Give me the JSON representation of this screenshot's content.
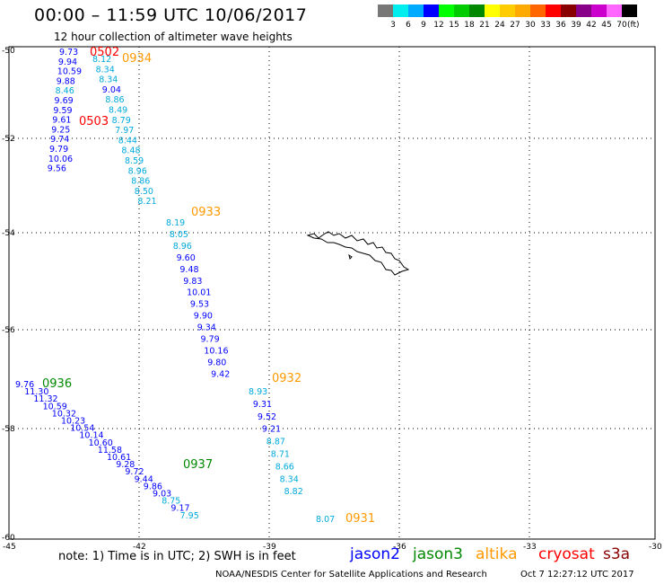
{
  "header": {
    "title": "00:00 – 11:59 UTC 10/06/2017",
    "subtitle": "12 hour collection of altimeter wave heights"
  },
  "color_scale": {
    "labels": [
      "3",
      "6",
      "9",
      "12",
      "15",
      "18",
      "21",
      "24",
      "27",
      "30",
      "33",
      "36",
      "39",
      "42",
      "45",
      "70"
    ],
    "unit": "(ft)",
    "colors": [
      "#777777",
      "#00eeee",
      "#00aaff",
      "#0000ff",
      "#00ff00",
      "#00cc00",
      "#008800",
      "#ffff00",
      "#ffcc00",
      "#ffaa00",
      "#ff6600",
      "#ff0000",
      "#880000",
      "#880088",
      "#cc00cc",
      "#ff66ff",
      "#000000"
    ]
  },
  "map": {
    "lat_labels": [
      "-50",
      "-52",
      "-54",
      "-56",
      "-58",
      "-60"
    ],
    "lon_labels": [
      "-45",
      "-42",
      "-39",
      "-36",
      "-33",
      "-30"
    ],
    "track_colors": {
      "jason2": "#0000ff",
      "jason3": "#008800",
      "altika": "#ff9900",
      "cryosat": "#ff0000",
      "s3a": "#880000",
      "low": "#00aadd"
    }
  },
  "tracks": [
    {
      "name": "track-0502",
      "time": "0502",
      "sat": "cryosat",
      "points": [
        {
          "v": "9.73",
          "c": "jason2"
        },
        {
          "v": "9.94",
          "c": "jason2"
        },
        {
          "v": "10.59",
          "c": "jason2"
        },
        {
          "v": "9.88",
          "c": "jason2"
        },
        {
          "v": "8.46",
          "c": "low"
        },
        {
          "v": "9.69",
          "c": "jason2"
        },
        {
          "v": "9.59",
          "c": "jason2"
        },
        {
          "v": "9.61",
          "c": "jason2"
        },
        {
          "v": "9.25",
          "c": "jason2"
        },
        {
          "v": "9.74",
          "c": "jason2"
        },
        {
          "v": "9.79",
          "c": "jason2"
        },
        {
          "v": "10.06",
          "c": "jason2"
        },
        {
          "v": "9.56",
          "c": "jason2"
        }
      ]
    },
    {
      "name": "track-0503",
      "time": "0503",
      "sat": "cryosat",
      "points": []
    },
    {
      "name": "track-0934",
      "time": "0934",
      "sat": "altika",
      "points": [
        {
          "v": "8.12",
          "c": "low"
        },
        {
          "v": "8.34",
          "c": "low"
        },
        {
          "v": "8.34",
          "c": "low"
        },
        {
          "v": "9.04",
          "c": "jason2"
        },
        {
          "v": "8.86",
          "c": "low"
        },
        {
          "v": "8.49",
          "c": "low"
        },
        {
          "v": "8.79",
          "c": "low"
        },
        {
          "v": "7.97",
          "c": "low"
        },
        {
          "v": "8.44",
          "c": "low"
        },
        {
          "v": "8.48",
          "c": "low"
        },
        {
          "v": "8.59",
          "c": "low"
        },
        {
          "v": "8.96",
          "c": "low"
        },
        {
          "v": "8.86",
          "c": "low"
        },
        {
          "v": "8.50",
          "c": "low"
        },
        {
          "v": "8.21",
          "c": "low"
        }
      ]
    },
    {
      "name": "track-0933",
      "time": "0933",
      "sat": "altika",
      "points": [
        {
          "v": "8.19",
          "c": "low"
        },
        {
          "v": "8.05",
          "c": "low"
        },
        {
          "v": "8.96",
          "c": "low"
        },
        {
          "v": "9.60",
          "c": "jason2"
        },
        {
          "v": "9.48",
          "c": "jason2"
        },
        {
          "v": "9.83",
          "c": "jason2"
        },
        {
          "v": "10.01",
          "c": "jason2"
        },
        {
          "v": "9.53",
          "c": "jason2"
        },
        {
          "v": "9.90",
          "c": "jason2"
        },
        {
          "v": "9.34",
          "c": "jason2"
        },
        {
          "v": "9.79",
          "c": "jason2"
        },
        {
          "v": "10.16",
          "c": "jason2"
        },
        {
          "v": "9.80",
          "c": "jason2"
        },
        {
          "v": "9.42",
          "c": "jason2"
        }
      ]
    },
    {
      "name": "track-0932",
      "time": "0932",
      "sat": "altika",
      "points": [
        {
          "v": "8.93",
          "c": "low"
        },
        {
          "v": "9.31",
          "c": "jason2"
        },
        {
          "v": "9.52",
          "c": "jason2"
        },
        {
          "v": "9.21",
          "c": "jason2"
        },
        {
          "v": "8.87",
          "c": "low"
        },
        {
          "v": "8.71",
          "c": "low"
        },
        {
          "v": "8.66",
          "c": "low"
        },
        {
          "v": "8.34",
          "c": "low"
        },
        {
          "v": "8.82",
          "c": "low"
        },
        {
          "v": "8.07",
          "c": "low"
        }
      ]
    },
    {
      "name": "track-0931",
      "time": "0931",
      "sat": "altika",
      "points": []
    },
    {
      "name": "track-0936",
      "time": "0936",
      "sat": "jason3",
      "points": [
        {
          "v": "9.76",
          "c": "jason2"
        },
        {
          "v": "11.30",
          "c": "jason2"
        },
        {
          "v": "11.32",
          "c": "jason2"
        },
        {
          "v": "10.59",
          "c": "jason2"
        },
        {
          "v": "10.32",
          "c": "jason2"
        },
        {
          "v": "10.23",
          "c": "jason2"
        },
        {
          "v": "10.54",
          "c": "jason2"
        },
        {
          "v": "10.14",
          "c": "jason2"
        },
        {
          "v": "10.60",
          "c": "jason2"
        },
        {
          "v": "11.58",
          "c": "jason2"
        },
        {
          "v": "10.61",
          "c": "jason2"
        },
        {
          "v": "9.28",
          "c": "jason2"
        },
        {
          "v": "9.72",
          "c": "jason2"
        },
        {
          "v": "9.44",
          "c": "jason2"
        },
        {
          "v": "9.86",
          "c": "jason2"
        },
        {
          "v": "9.03",
          "c": "jason2"
        },
        {
          "v": "8.75",
          "c": "low"
        },
        {
          "v": "9.17",
          "c": "jason2"
        },
        {
          "v": "7.95",
          "c": "low"
        }
      ]
    },
    {
      "name": "track-0937",
      "time": "0937",
      "sat": "jason3",
      "points": []
    }
  ],
  "footer": {
    "note": "note:  1) Time is in UTC; 2) SWH is in feet",
    "satellites": [
      {
        "name": "jason2",
        "color": "#0000ff"
      },
      {
        "name": "jason3",
        "color": "#008800"
      },
      {
        "name": "altika",
        "color": "#ff9900"
      },
      {
        "name": "cryosat",
        "color": "#ff0000"
      },
      {
        "name": "s3a",
        "color": "#880000"
      }
    ],
    "credit": "NOAA/NESDIS Center for Satellite Applications and Research",
    "timestamp": "Oct  7 12:27:12 UTC 2017"
  }
}
